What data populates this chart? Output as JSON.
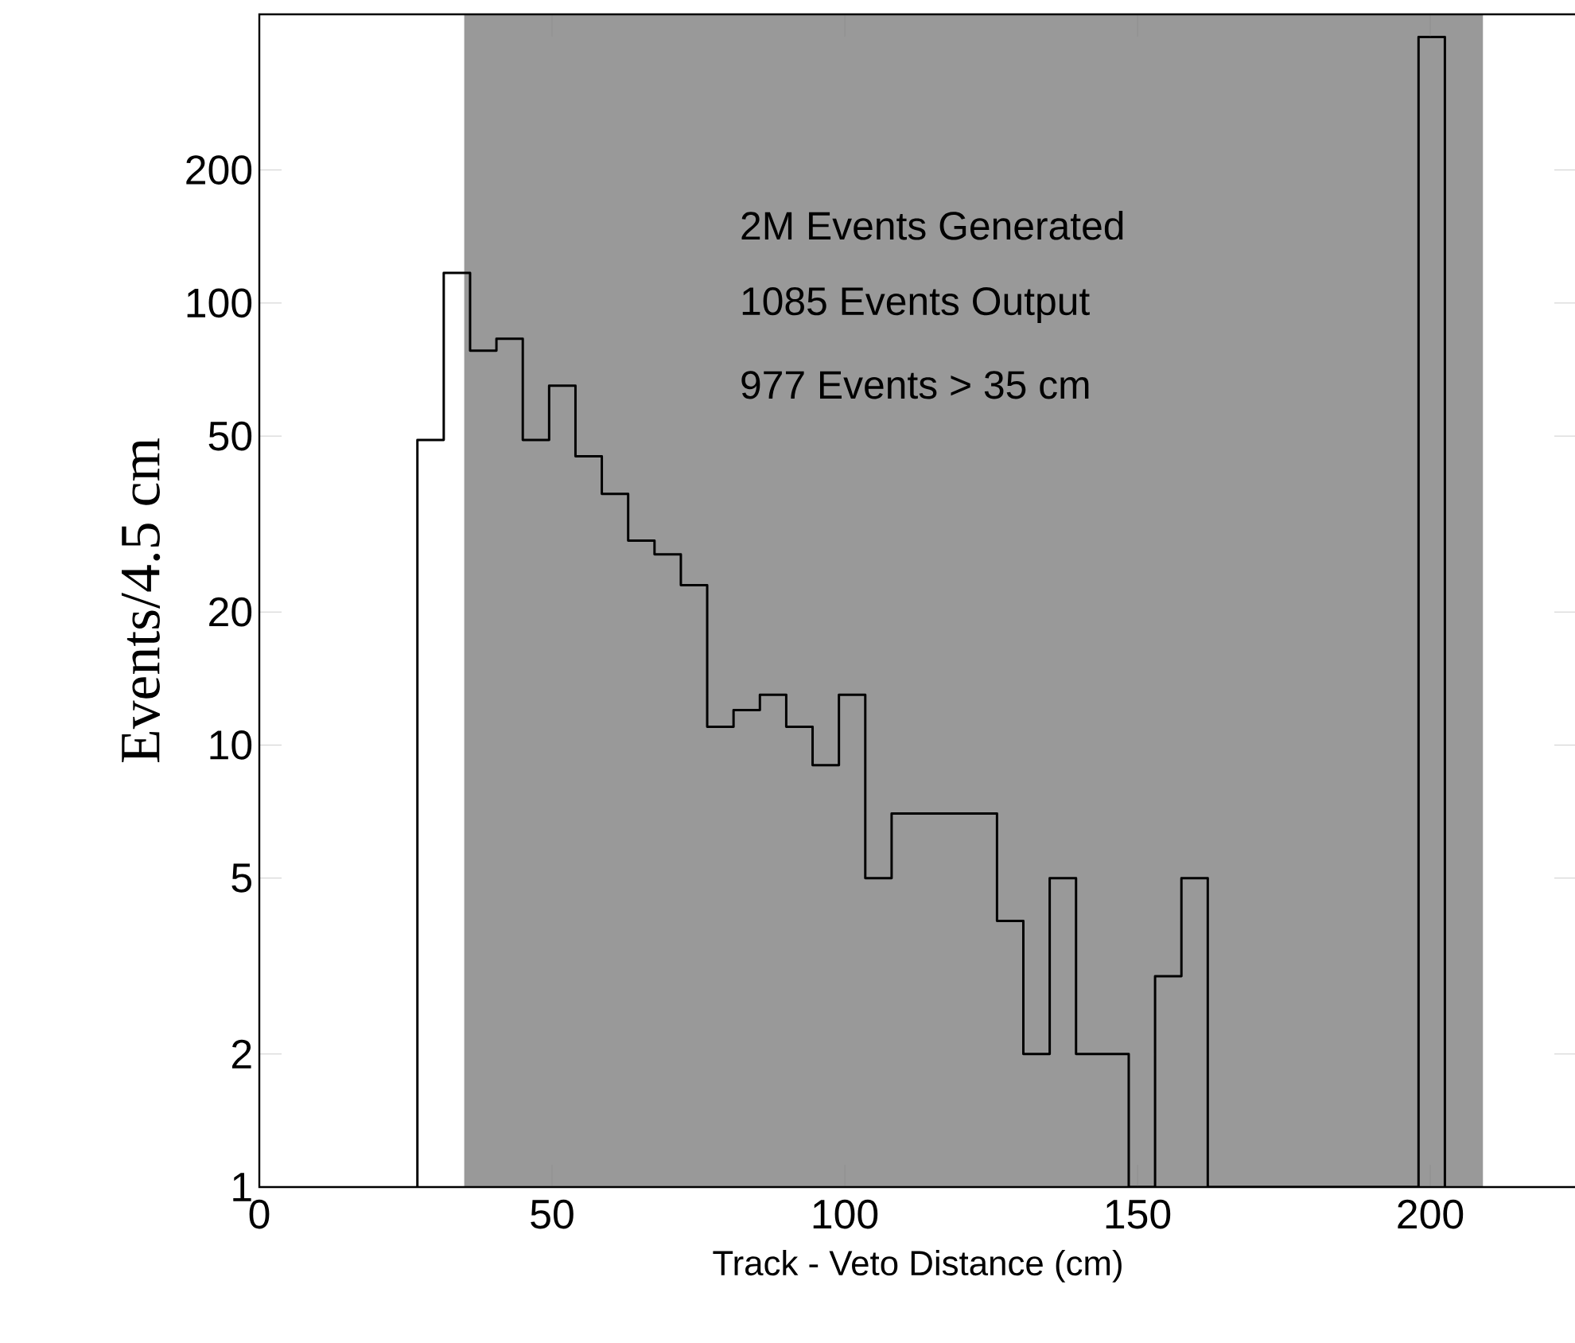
{
  "chart_data": {
    "type": "histogram",
    "xlabel": "Track - Veto Distance (cm)",
    "ylabel": "Events/4.5 cm",
    "bins": [
      27,
      31.5,
      36,
      40.5,
      45,
      49.5,
      54,
      58.5,
      63,
      67.5,
      72,
      76.5,
      81,
      85.5,
      90,
      94.5,
      99,
      103.5,
      108,
      112.5,
      117,
      121.5,
      126,
      130.5,
      135,
      139.5,
      144,
      148.5,
      153,
      157.5,
      162,
      166.5,
      171,
      175.5,
      180,
      184.5,
      189,
      193.5,
      198,
      202.5
    ],
    "values": [
      49,
      117,
      78,
      83,
      49,
      65,
      45,
      37,
      29,
      27,
      23,
      11,
      12,
      13,
      11,
      9,
      13,
      5,
      7,
      7,
      7,
      7,
      4,
      2,
      5,
      2,
      2,
      null,
      3,
      5,
      null,
      null,
      null,
      null,
      null,
      null,
      null,
      null,
      400
    ],
    "color": "#000000",
    "xlim": [
      0,
      225
    ],
    "xticks": [
      0,
      50,
      100,
      150,
      200
    ],
    "ylim": [
      1,
      450
    ],
    "yticks": [
      1,
      2,
      5,
      10,
      20,
      50,
      100,
      200
    ],
    "log": "y",
    "bands": [
      {
        "axis": "x",
        "from": 35,
        "to": 209,
        "color": "#999999"
      }
    ],
    "annotations": [
      "2M Events Generated",
      "1085 Events Output",
      "977 Events > 35 cm"
    ]
  }
}
